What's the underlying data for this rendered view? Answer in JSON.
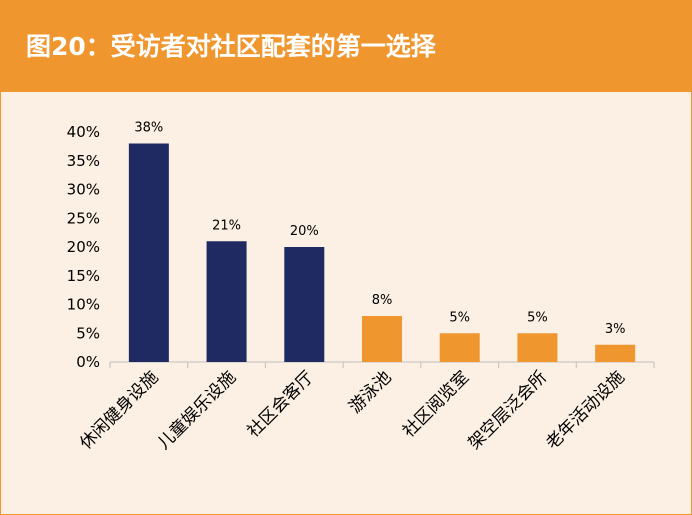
{
  "header": {
    "title": "图20：受访者对社区配套的第一选择"
  },
  "chart_data": {
    "type": "bar",
    "title": "图20：受访者对社区配套的第一选择",
    "categories": [
      "休闲健身设施",
      "儿童娱乐设施",
      "社区会客厅",
      "游泳池",
      "社区阅览室",
      "架空层泛会所",
      "老年活动设施"
    ],
    "values": [
      0.38,
      0.21,
      0.2,
      0.08,
      0.05,
      0.05,
      0.03
    ],
    "data_labels": [
      "38%",
      "21%",
      "20%",
      "8%",
      "5%",
      "5%",
      "3%"
    ],
    "bar_colors": [
      "#1f2a63",
      "#1f2a63",
      "#1f2a63",
      "#f0962f",
      "#f0962f",
      "#f0962f",
      "#f0962f"
    ],
    "ylim": [
      0,
      0.4
    ],
    "yticks": [
      0,
      0.05,
      0.1,
      0.15,
      0.2,
      0.25,
      0.3,
      0.35,
      0.4
    ],
    "ytick_labels": [
      "0%",
      "5%",
      "10%",
      "15%",
      "20%",
      "25%",
      "30%",
      "35%",
      "40%"
    ],
    "xlabel": "",
    "ylabel": "",
    "grid": false,
    "legend": "none"
  }
}
